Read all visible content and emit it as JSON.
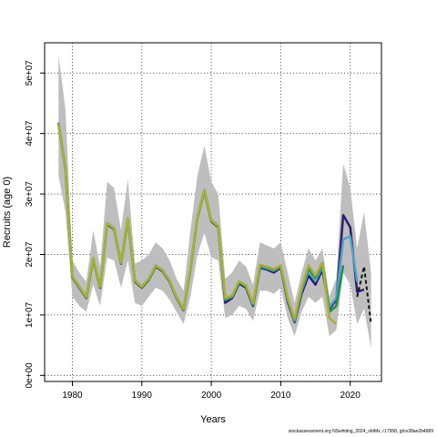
{
  "chart_data": {
    "type": "line",
    "xlabel": "Years",
    "ylabel": "Recruits (age 0)",
    "xlim": [
      1976,
      2024.5
    ],
    "ylim": [
      -1000000,
      55000000
    ],
    "x_ticks": [
      1980,
      1990,
      2000,
      2010,
      2020
    ],
    "y_ticks": [
      0,
      10000000,
      20000000,
      30000000,
      40000000,
      50000000
    ],
    "y_tick_labels": [
      "0e+00",
      "1e+07",
      "2e+07",
      "3e+07",
      "4e+07",
      "5e+07"
    ],
    "grid": true,
    "grid_style": "dotted",
    "band": {
      "x": [
        1978,
        1979,
        1980,
        1981,
        1982,
        1983,
        1984,
        1985,
        1986,
        1987,
        1988,
        1989,
        1990,
        1991,
        1992,
        1993,
        1994,
        1995,
        1996,
        1997,
        1998,
        1999,
        2000,
        2001,
        2002,
        2003,
        2004,
        2005,
        2006,
        2007,
        2008,
        2009,
        2010,
        2011,
        2012,
        2013,
        2014,
        2015,
        2016,
        2017,
        2018,
        2019,
        2020,
        2021,
        2022,
        2023
      ],
      "upper": [
        53000000,
        44000000,
        19000000,
        17000000,
        15500000,
        24000000,
        18000000,
        32000000,
        31000000,
        24000000,
        32500000,
        18500000,
        19000000,
        20000000,
        22000000,
        21000000,
        19000000,
        16000000,
        14000000,
        24000000,
        33000000,
        38000000,
        32000000,
        30000000,
        16000000,
        17000000,
        19000000,
        18000000,
        15000000,
        22000000,
        21500000,
        21000000,
        22000000,
        17000000,
        12000000,
        17000000,
        21000000,
        19000000,
        21000000,
        13000000,
        16000000,
        35000000,
        31000000,
        21000000,
        27000000,
        17000000
      ],
      "lower": [
        33000000,
        27000000,
        13000000,
        11500000,
        10500000,
        15000000,
        11500000,
        19500000,
        19000000,
        14500000,
        19000000,
        12000000,
        11500000,
        13000000,
        14500000,
        14000000,
        12500000,
        10500000,
        8500000,
        13000000,
        20000000,
        23500000,
        19500000,
        19000000,
        9500000,
        10000000,
        11500000,
        11000000,
        9000000,
        14000000,
        14000000,
        13500000,
        14500000,
        9500000,
        6500000,
        10500000,
        13000000,
        12000000,
        13000000,
        6500000,
        7500000,
        17000000,
        15000000,
        8500000,
        11000000,
        4500000
      ]
    },
    "series": [
      {
        "color": "#2b1c70",
        "x": [
          1978,
          1979,
          1980,
          1981,
          1982,
          1983,
          1984,
          1985,
          1986,
          1987,
          1988,
          1989,
          1990,
          1991,
          1992,
          1993,
          1994,
          1995,
          1996,
          1997,
          1998,
          1999,
          2000,
          2001,
          2002,
          2003,
          2004,
          2005,
          2006,
          2007,
          2008,
          2009,
          2010,
          2011,
          2012,
          2013,
          2014,
          2015,
          2016,
          2017,
          2018,
          2019,
          2020,
          2021,
          2022
        ],
        "y": [
          41500000,
          34000000,
          16200000,
          14500000,
          12800000,
          19200000,
          14500000,
          25000000,
          24200000,
          18500000,
          25800000,
          15500000,
          14500000,
          15800000,
          18000000,
          17200000,
          15500000,
          12800000,
          10800000,
          17500000,
          26000000,
          30500000,
          25500000,
          24500000,
          12000000,
          12800000,
          15200000,
          14500000,
          11500000,
          17800000,
          17500000,
          17000000,
          17800000,
          12200000,
          8800000,
          13500000,
          16500000,
          15000000,
          17500000,
          11000000,
          12500000,
          26500000,
          24500000,
          13800000,
          14200000
        ]
      },
      {
        "color": "#4aa3c9",
        "x": [
          1978,
          1979,
          1980,
          1981,
          1982,
          1983,
          1984,
          1985,
          1986,
          1987,
          1988,
          1989,
          1990,
          1991,
          1992,
          1993,
          1994,
          1995,
          1996,
          1997,
          1998,
          1999,
          2000,
          2001,
          2002,
          2003,
          2004,
          2005,
          2006,
          2007,
          2008,
          2009,
          2010,
          2011,
          2012,
          2013,
          2014,
          2015,
          2016,
          2017,
          2018,
          2019,
          2020,
          2021
        ],
        "y": [
          41800000,
          34200000,
          16400000,
          14700000,
          13000000,
          19400000,
          14700000,
          25200000,
          24400000,
          18700000,
          26000000,
          15700000,
          14700000,
          16000000,
          18200000,
          17400000,
          15700000,
          13000000,
          11000000,
          17700000,
          26200000,
          30700000,
          25700000,
          24700000,
          12500000,
          13000000,
          15400000,
          14700000,
          11700000,
          18000000,
          17700000,
          17300000,
          18000000,
          12500000,
          9000000,
          14000000,
          17200000,
          15600000,
          18000000,
          11300000,
          12800000,
          22500000,
          23000000,
          15500000
        ]
      },
      {
        "color": "#1e8c4e",
        "x": [
          1978,
          1979,
          1980,
          1981,
          1982,
          1983,
          1984,
          1985,
          1986,
          1987,
          1988,
          1989,
          1990,
          1991,
          1992,
          1993,
          1994,
          1995,
          1996,
          1997,
          1998,
          1999,
          2000,
          2001,
          2002,
          2003,
          2004,
          2005,
          2006,
          2007,
          2008,
          2009,
          2010,
          2011,
          2012,
          2013,
          2014,
          2015,
          2016,
          2017,
          2018,
          2019
        ],
        "y": [
          41700000,
          34100000,
          16300000,
          14600000,
          12900000,
          19300000,
          14600000,
          25100000,
          24300000,
          18600000,
          25900000,
          15600000,
          14600000,
          15900000,
          18100000,
          17300000,
          15600000,
          12900000,
          10900000,
          17600000,
          26100000,
          30600000,
          25600000,
          24600000,
          12700000,
          13100000,
          15500000,
          14800000,
          11800000,
          18200000,
          17900000,
          17500000,
          18100000,
          12700000,
          9200000,
          14300000,
          17800000,
          16200000,
          18600000,
          10500000,
          11500000,
          18200000
        ]
      },
      {
        "color": "#a8b32a",
        "x": [
          1978,
          1979,
          1980,
          1981,
          1982,
          1983,
          1984,
          1985,
          1986,
          1987,
          1988,
          1989,
          1990,
          1991,
          1992,
          1993,
          1994,
          1995,
          1996,
          1997,
          1998,
          1999,
          2000,
          2001,
          2002,
          2003,
          2004,
          2005,
          2006,
          2007,
          2008,
          2009,
          2010,
          2011,
          2012,
          2013,
          2014,
          2015,
          2016,
          2017,
          2018
        ],
        "y": [
          41600000,
          34000000,
          16350000,
          14650000,
          12950000,
          19350000,
          14650000,
          25150000,
          24350000,
          18650000,
          25950000,
          15650000,
          14650000,
          15950000,
          18150000,
          17350000,
          15650000,
          12950000,
          10950000,
          17650000,
          26150000,
          30650000,
          25650000,
          24650000,
          12800000,
          13200000,
          15600000,
          14900000,
          11900000,
          18300000,
          18000000,
          17600000,
          18200000,
          12800000,
          9300000,
          14500000,
          18200000,
          16500000,
          18700000,
          9500000,
          8500000
        ]
      },
      {
        "color": "#111111",
        "dashed": true,
        "x": [
          2021,
          2022,
          2023
        ],
        "y": [
          13000000,
          18000000,
          8500000
        ]
      }
    ]
  },
  "footer": "stockassessment.org NSwhiting_2024_oldMx, r17958, git:e38ae2b4989"
}
